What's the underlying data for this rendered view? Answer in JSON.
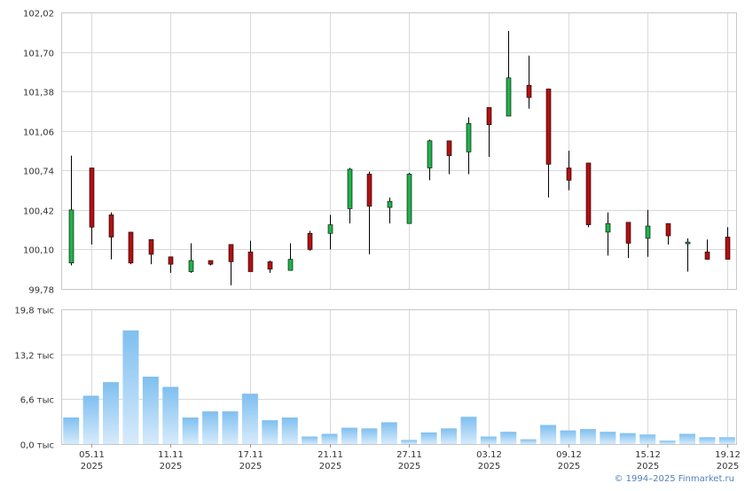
{
  "colors": {
    "up": "#21b24b",
    "down": "#b40f0f",
    "wick": "#000000",
    "grid": "#d9d9d9",
    "axis_text": "#333333",
    "volume_top": "#7fbff0",
    "volume_bottom": "#d6ebfb",
    "copyright": "#4f81bd"
  },
  "copyright": "© 1994–2025 Finmarket.ru",
  "chart_data": [
    {
      "type": "candlestick",
      "title": "",
      "ylim": [
        99.78,
        102.02
      ],
      "yticks": [
        "102,02",
        "101,70",
        "101,38",
        "101,06",
        "100,74",
        "100,42",
        "100,10",
        "99,78"
      ],
      "grid": true,
      "x_tick_labels": [
        {
          "day": "05.11",
          "year": "2025"
        },
        {
          "day": "11.11",
          "year": "2025"
        },
        {
          "day": "17.11",
          "year": "2025"
        },
        {
          "day": "21.11",
          "year": "2025"
        },
        {
          "day": "27.11",
          "year": "2025"
        },
        {
          "day": "03.12",
          "year": "2025"
        },
        {
          "day": "09.12",
          "year": "2025"
        },
        {
          "day": "15.12",
          "year": "2025"
        },
        {
          "day": "19.12",
          "year": "2025"
        }
      ],
      "x_tick_indices": [
        1,
        5,
        9,
        13,
        17,
        21,
        25,
        29,
        33
      ],
      "candles": [
        {
          "o": 99.99,
          "h": 100.86,
          "l": 99.97,
          "c": 100.42
        },
        {
          "o": 100.76,
          "h": 100.76,
          "l": 100.14,
          "c": 100.28
        },
        {
          "o": 100.38,
          "h": 100.4,
          "l": 100.02,
          "c": 100.2
        },
        {
          "o": 100.24,
          "h": 100.24,
          "l": 99.98,
          "c": 99.99
        },
        {
          "o": 100.18,
          "h": 100.18,
          "l": 99.98,
          "c": 100.06
        },
        {
          "o": 100.04,
          "h": 100.04,
          "l": 99.91,
          "c": 99.98
        },
        {
          "o": 99.92,
          "h": 100.15,
          "l": 99.91,
          "c": 100.01
        },
        {
          "o": 100.01,
          "h": 100.01,
          "l": 99.97,
          "c": 99.98
        },
        {
          "o": 100.14,
          "h": 100.14,
          "l": 99.81,
          "c": 100.0
        },
        {
          "o": 100.08,
          "h": 100.17,
          "l": 99.92,
          "c": 99.92
        },
        {
          "o": 100.0,
          "h": 100.01,
          "l": 99.91,
          "c": 99.94
        },
        {
          "o": 99.93,
          "h": 100.15,
          "l": 99.93,
          "c": 100.02
        },
        {
          "o": 100.23,
          "h": 100.25,
          "l": 100.09,
          "c": 100.1
        },
        {
          "o": 100.23,
          "h": 100.38,
          "l": 100.1,
          "c": 100.3
        },
        {
          "o": 100.43,
          "h": 100.76,
          "l": 100.31,
          "c": 100.75
        },
        {
          "o": 100.71,
          "h": 100.73,
          "l": 100.06,
          "c": 100.45
        },
        {
          "o": 100.44,
          "h": 100.52,
          "l": 100.31,
          "c": 100.49
        },
        {
          "o": 100.31,
          "h": 100.72,
          "l": 100.31,
          "c": 100.71
        },
        {
          "o": 100.76,
          "h": 100.99,
          "l": 100.66,
          "c": 100.98
        },
        {
          "o": 100.98,
          "h": 100.98,
          "l": 100.71,
          "c": 100.86
        },
        {
          "o": 100.89,
          "h": 101.17,
          "l": 100.71,
          "c": 101.12
        },
        {
          "o": 101.25,
          "h": 101.25,
          "l": 100.85,
          "c": 101.11
        },
        {
          "o": 101.18,
          "h": 101.87,
          "l": 101.18,
          "c": 101.49
        },
        {
          "o": 101.43,
          "h": 101.67,
          "l": 101.24,
          "c": 101.33
        },
        {
          "o": 101.4,
          "h": 101.4,
          "l": 100.52,
          "c": 100.79
        },
        {
          "o": 100.76,
          "h": 100.9,
          "l": 100.58,
          "c": 100.66
        },
        {
          "o": 100.8,
          "h": 100.8,
          "l": 100.28,
          "c": 100.3
        },
        {
          "o": 100.24,
          "h": 100.4,
          "l": 100.05,
          "c": 100.31
        },
        {
          "o": 100.32,
          "h": 100.32,
          "l": 100.03,
          "c": 100.15
        },
        {
          "o": 100.19,
          "h": 100.42,
          "l": 100.04,
          "c": 100.29
        },
        {
          "o": 100.31,
          "h": 100.31,
          "l": 100.14,
          "c": 100.21
        },
        {
          "o": 100.15,
          "h": 100.19,
          "l": 99.92,
          "c": 100.16
        },
        {
          "o": 100.08,
          "h": 100.18,
          "l": 100.02,
          "c": 100.02
        },
        {
          "o": 100.2,
          "h": 100.28,
          "l": 100.02,
          "c": 100.02
        }
      ]
    },
    {
      "type": "bar",
      "title": "",
      "ylim": [
        0,
        19.8
      ],
      "yticks": [
        "19,8 тыс",
        "13,2 тыс",
        "6,6 тыс",
        "0,0 тыс"
      ],
      "grid": true,
      "values": [
        3.9,
        7.1,
        9.1,
        16.7,
        9.9,
        8.4,
        3.9,
        4.8,
        4.8,
        7.4,
        3.5,
        3.9,
        1.1,
        1.5,
        2.4,
        2.3,
        3.2,
        0.6,
        1.7,
        2.3,
        4.0,
        1.1,
        1.8,
        0.7,
        2.8,
        2.0,
        2.2,
        1.8,
        1.6,
        1.4,
        0.5,
        1.5,
        1.0,
        1.0
      ]
    }
  ]
}
